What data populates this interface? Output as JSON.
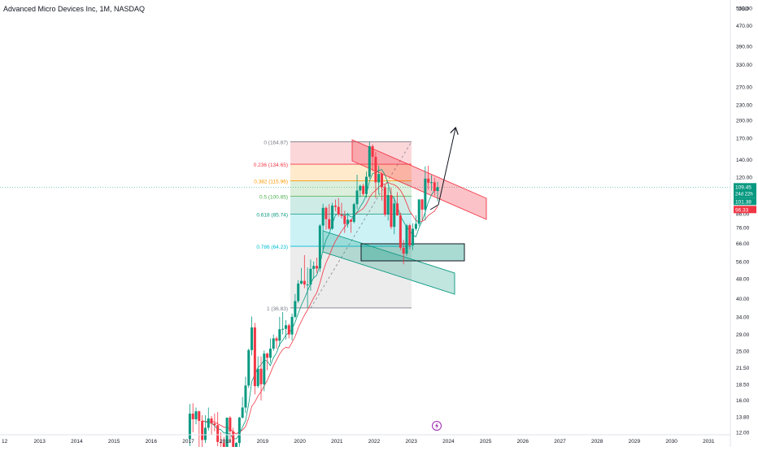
{
  "header": {
    "symbol_title": "Advanced Micro Devices Inc, 1M, NASDAQ"
  },
  "price_axis": {
    "currency": "USD",
    "ticks": [
      "550.00",
      "470.00",
      "390.00",
      "330.00",
      "270.00",
      "230.00",
      "200.00",
      "170.00",
      "140.00",
      "120.00",
      "101.38",
      "86.00",
      "76.00",
      "66.00",
      "56.00",
      "48.00",
      "40.00",
      "34.00",
      "29.00",
      "25.00",
      "21.50",
      "18.50",
      "16.00",
      "13.80",
      "12.00"
    ],
    "tick_values": [
      550,
      470,
      390,
      330,
      270,
      230,
      200,
      170,
      140,
      120,
      101.38,
      86,
      76,
      66,
      56,
      48,
      40,
      34,
      29,
      25,
      21.5,
      18.5,
      16,
      13.8,
      12
    ],
    "current_price_badge": "109.45",
    "countdown_badge": "24d 22h",
    "sma_badge": "101.38",
    "red_badge": "96.33",
    "colors": {
      "current": "#089981",
      "sma": "#089981",
      "red": "#f23645"
    }
  },
  "time_axis": {
    "labels": [
      "12",
      "2013",
      "2014",
      "2015",
      "2016",
      "2017",
      "2018",
      "2019",
      "2020",
      "2021",
      "2022",
      "2023",
      "2024",
      "2025",
      "2026",
      "2027",
      "2028",
      "2029",
      "2030",
      "2031"
    ]
  },
  "fib_levels": [
    {
      "label": "0 (164.87)",
      "value": 164.87,
      "color": "#787b86"
    },
    {
      "label": "0.236 (134.65)",
      "value": 134.65,
      "color": "#f23645"
    },
    {
      "label": "0.382 (115.96)",
      "value": 115.96,
      "color": "#ff9800"
    },
    {
      "label": "0.5 (100.85)",
      "value": 100.85,
      "color": "#4caf50"
    },
    {
      "label": "0.618 (85.74)",
      "value": 85.74,
      "color": "#089981"
    },
    {
      "label": "0.786 (64.23)",
      "value": 64.23,
      "color": "#00bcd4"
    },
    {
      "label": "1 (36.83)",
      "value": 36.83,
      "color": "#787b86"
    }
  ],
  "event_icon": "lightning-icon",
  "chart_data": {
    "type": "candlestick",
    "title": "Advanced Micro Devices Inc, 1M, NASDAQ",
    "y_scale": "log",
    "ylim": [
      12,
      550
    ],
    "x_range": [
      "2012",
      "2031"
    ],
    "series": [
      {
        "name": "AMD monthly candles",
        "points": [
          {
            "t": "2017-01",
            "o": 11.3,
            "h": 15.5,
            "l": 10.6,
            "c": 14.2
          },
          {
            "t": "2017-02",
            "o": 14.2,
            "h": 15.6,
            "l": 12.0,
            "c": 13.5
          },
          {
            "t": "2017-03",
            "o": 13.5,
            "h": 15.0,
            "l": 12.9,
            "c": 14.5
          },
          {
            "t": "2017-04",
            "o": 14.5,
            "h": 14.6,
            "l": 10.3,
            "c": 13.3
          },
          {
            "t": "2017-05",
            "o": 13.3,
            "h": 14.0,
            "l": 10.1,
            "c": 11.2
          },
          {
            "t": "2017-06",
            "o": 11.2,
            "h": 14.0,
            "l": 10.9,
            "c": 12.5
          },
          {
            "t": "2017-07",
            "o": 12.5,
            "h": 15.0,
            "l": 12.2,
            "c": 13.6
          },
          {
            "t": "2017-08",
            "o": 13.6,
            "h": 13.9,
            "l": 11.7,
            "c": 13.0
          },
          {
            "t": "2017-09",
            "o": 13.0,
            "h": 14.2,
            "l": 12.1,
            "c": 12.8
          },
          {
            "t": "2017-10",
            "o": 12.8,
            "h": 14.4,
            "l": 10.6,
            "c": 11.0
          },
          {
            "t": "2017-11",
            "o": 11.0,
            "h": 12.0,
            "l": 10.0,
            "c": 10.9
          },
          {
            "t": "2017-12",
            "o": 10.9,
            "h": 11.5,
            "l": 9.7,
            "c": 10.3
          },
          {
            "t": "2018-01",
            "o": 10.3,
            "h": 13.5,
            "l": 10.2,
            "c": 13.7
          },
          {
            "t": "2018-02",
            "o": 13.7,
            "h": 13.9,
            "l": 11.0,
            "c": 12.1
          },
          {
            "t": "2018-03",
            "o": 12.1,
            "h": 12.5,
            "l": 9.8,
            "c": 10.0
          },
          {
            "t": "2018-04",
            "o": 10.0,
            "h": 11.0,
            "l": 9.0,
            "c": 10.9
          },
          {
            "t": "2018-05",
            "o": 10.9,
            "h": 13.8,
            "l": 10.5,
            "c": 13.7
          },
          {
            "t": "2018-06",
            "o": 13.7,
            "h": 16.5,
            "l": 13.6,
            "c": 15.0
          },
          {
            "t": "2018-07",
            "o": 15.0,
            "h": 19.8,
            "l": 14.3,
            "c": 18.3
          },
          {
            "t": "2018-08",
            "o": 18.3,
            "h": 25.5,
            "l": 17.9,
            "c": 25.2
          },
          {
            "t": "2018-09",
            "o": 25.2,
            "h": 34.1,
            "l": 24.0,
            "c": 30.9
          },
          {
            "t": "2018-10",
            "o": 30.9,
            "h": 32.2,
            "l": 16.9,
            "c": 18.2
          },
          {
            "t": "2018-11",
            "o": 18.2,
            "h": 23.8,
            "l": 17.9,
            "c": 21.3
          },
          {
            "t": "2018-12",
            "o": 21.3,
            "h": 23.8,
            "l": 16.0,
            "c": 18.5
          },
          {
            "t": "2019-01",
            "o": 18.5,
            "h": 25.1,
            "l": 17.4,
            "c": 24.4
          },
          {
            "t": "2019-02",
            "o": 24.4,
            "h": 24.6,
            "l": 21.0,
            "c": 23.5
          },
          {
            "t": "2019-03",
            "o": 23.5,
            "h": 28.0,
            "l": 22.5,
            "c": 25.5
          },
          {
            "t": "2019-04",
            "o": 25.5,
            "h": 29.0,
            "l": 25.0,
            "c": 28.0
          },
          {
            "t": "2019-05",
            "o": 28.0,
            "h": 28.5,
            "l": 25.5,
            "c": 27.4
          },
          {
            "t": "2019-06",
            "o": 27.4,
            "h": 34.0,
            "l": 26.0,
            "c": 30.4
          },
          {
            "t": "2019-07",
            "o": 30.4,
            "h": 35.5,
            "l": 29.0,
            "c": 30.5
          },
          {
            "t": "2019-08",
            "o": 30.5,
            "h": 33.0,
            "l": 27.7,
            "c": 31.5
          },
          {
            "t": "2019-09",
            "o": 31.5,
            "h": 32.0,
            "l": 28.0,
            "c": 29.0
          },
          {
            "t": "2019-10",
            "o": 29.0,
            "h": 35.0,
            "l": 27.5,
            "c": 34.0
          },
          {
            "t": "2019-11",
            "o": 34.0,
            "h": 41.8,
            "l": 33.5,
            "c": 39.2
          },
          {
            "t": "2019-12",
            "o": 39.2,
            "h": 47.3,
            "l": 38.5,
            "c": 45.9
          },
          {
            "t": "2020-01",
            "o": 45.9,
            "h": 52.8,
            "l": 45.5,
            "c": 47.0
          },
          {
            "t": "2020-02",
            "o": 47.0,
            "h": 59.3,
            "l": 44.0,
            "c": 45.5
          },
          {
            "t": "2020-03",
            "o": 45.5,
            "h": 53.0,
            "l": 36.8,
            "c": 45.5
          },
          {
            "t": "2020-04",
            "o": 45.5,
            "h": 57.0,
            "l": 43.0,
            "c": 52.4
          },
          {
            "t": "2020-05",
            "o": 52.4,
            "h": 56.0,
            "l": 48.0,
            "c": 53.8
          },
          {
            "t": "2020-06",
            "o": 53.8,
            "h": 58.0,
            "l": 50.5,
            "c": 52.6
          },
          {
            "t": "2020-07",
            "o": 52.6,
            "h": 78.5,
            "l": 51.0,
            "c": 77.4
          },
          {
            "t": "2020-08",
            "o": 77.4,
            "h": 94.3,
            "l": 74.0,
            "c": 90.8
          },
          {
            "t": "2020-09",
            "o": 90.8,
            "h": 92.0,
            "l": 74.5,
            "c": 82.0
          },
          {
            "t": "2020-10",
            "o": 82.0,
            "h": 94.0,
            "l": 74.6,
            "c": 75.3
          },
          {
            "t": "2020-11",
            "o": 75.3,
            "h": 95.0,
            "l": 74.5,
            "c": 92.7
          },
          {
            "t": "2020-12",
            "o": 92.7,
            "h": 97.9,
            "l": 88.0,
            "c": 91.7
          },
          {
            "t": "2021-01",
            "o": 91.7,
            "h": 99.2,
            "l": 84.0,
            "c": 85.6
          },
          {
            "t": "2021-02",
            "o": 85.6,
            "h": 95.0,
            "l": 82.5,
            "c": 84.5
          },
          {
            "t": "2021-03",
            "o": 84.5,
            "h": 88.5,
            "l": 72.5,
            "c": 78.5
          },
          {
            "t": "2021-04",
            "o": 78.5,
            "h": 87.0,
            "l": 76.0,
            "c": 81.6
          },
          {
            "t": "2021-05",
            "o": 81.6,
            "h": 82.0,
            "l": 72.5,
            "c": 80.1
          },
          {
            "t": "2021-06",
            "o": 80.1,
            "h": 95.0,
            "l": 79.0,
            "c": 93.9
          },
          {
            "t": "2021-07",
            "o": 93.9,
            "h": 122.5,
            "l": 89.7,
            "c": 106.2
          },
          {
            "t": "2021-08",
            "o": 106.2,
            "h": 112.0,
            "l": 100.0,
            "c": 110.7
          },
          {
            "t": "2021-09",
            "o": 110.7,
            "h": 113.0,
            "l": 101.0,
            "c": 102.9
          },
          {
            "t": "2021-10",
            "o": 102.9,
            "h": 126.0,
            "l": 99.5,
            "c": 120.2
          },
          {
            "t": "2021-11",
            "o": 120.2,
            "h": 164.5,
            "l": 118.0,
            "c": 158.4
          },
          {
            "t": "2021-12",
            "o": 158.4,
            "h": 161.0,
            "l": 126.0,
            "c": 143.9
          },
          {
            "t": "2022-01",
            "o": 143.9,
            "h": 150.0,
            "l": 99.3,
            "c": 114.3
          },
          {
            "t": "2022-02",
            "o": 114.3,
            "h": 133.0,
            "l": 102.5,
            "c": 123.3
          },
          {
            "t": "2022-03",
            "o": 123.3,
            "h": 125.0,
            "l": 97.0,
            "c": 109.3
          },
          {
            "t": "2022-04",
            "o": 109.3,
            "h": 112.0,
            "l": 84.0,
            "c": 85.5
          },
          {
            "t": "2022-05",
            "o": 85.5,
            "h": 109.0,
            "l": 81.0,
            "c": 101.9
          },
          {
            "t": "2022-06",
            "o": 101.9,
            "h": 109.0,
            "l": 75.0,
            "c": 76.5
          },
          {
            "t": "2022-07",
            "o": 76.5,
            "h": 100.0,
            "l": 71.6,
            "c": 94.5
          },
          {
            "t": "2022-08",
            "o": 94.5,
            "h": 104.6,
            "l": 84.5,
            "c": 84.9
          },
          {
            "t": "2022-09",
            "o": 84.9,
            "h": 87.0,
            "l": 62.0,
            "c": 63.4
          },
          {
            "t": "2022-10",
            "o": 63.4,
            "h": 68.0,
            "l": 54.6,
            "c": 60.1
          },
          {
            "t": "2022-11",
            "o": 60.1,
            "h": 78.5,
            "l": 59.0,
            "c": 77.6
          },
          {
            "t": "2022-12",
            "o": 77.6,
            "h": 78.7,
            "l": 62.5,
            "c": 64.8
          },
          {
            "t": "2023-01",
            "o": 64.8,
            "h": 79.0,
            "l": 62.0,
            "c": 75.2
          },
          {
            "t": "2023-02",
            "o": 75.2,
            "h": 85.0,
            "l": 74.0,
            "c": 78.6
          },
          {
            "t": "2023-03",
            "o": 78.6,
            "h": 98.0,
            "l": 77.0,
            "c": 98.0
          },
          {
            "t": "2023-04",
            "o": 98.0,
            "h": 98.5,
            "l": 81.0,
            "c": 89.4
          },
          {
            "t": "2023-05",
            "o": 89.4,
            "h": 132.0,
            "l": 81.0,
            "c": 118.2
          },
          {
            "t": "2023-06",
            "o": 118.2,
            "h": 132.8,
            "l": 107.0,
            "c": 113.9
          },
          {
            "t": "2023-07",
            "o": 113.9,
            "h": 122.0,
            "l": 106.0,
            "c": 114.4
          },
          {
            "t": "2023-08",
            "o": 114.4,
            "h": 119.0,
            "l": 101.5,
            "c": 105.7
          },
          {
            "t": "2023-09",
            "o": 105.7,
            "h": 115.0,
            "l": 96.3,
            "c": 109.45
          }
        ]
      },
      {
        "name": "moving average (teal)",
        "value_last": 101.38
      },
      {
        "name": "moving average (red)",
        "value_last": 96.33
      }
    ],
    "last_price": 109.45
  }
}
